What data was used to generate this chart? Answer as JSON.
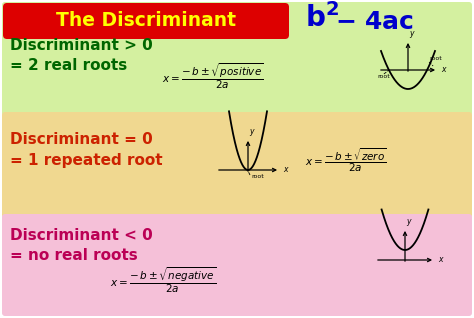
{
  "title_bg": "#dd0000",
  "title_text": "The Discriminant",
  "title_color": "#ffff00",
  "formula_color": "#0000cc",
  "section1_bg_top": "#d4f0a0",
  "section1_bg_bot": "#e8f8c0",
  "section2_bg": "#f0d890",
  "section3_bg_top": "#f0b8d0",
  "section3_bg_bot": "#fcd8e8",
  "disc_gt_line1": "Discriminant > 0",
  "disc_gt_line2": "= 2 real roots",
  "disc_gt_color": "#006600",
  "disc_eq_line1": "Discriminant = 0",
  "disc_eq_line2": "= 1 repeated root",
  "disc_eq_color": "#cc2200",
  "disc_lt_line1": "Discriminant < 0",
  "disc_lt_line2": "= no real roots",
  "disc_lt_color": "#bb0055"
}
